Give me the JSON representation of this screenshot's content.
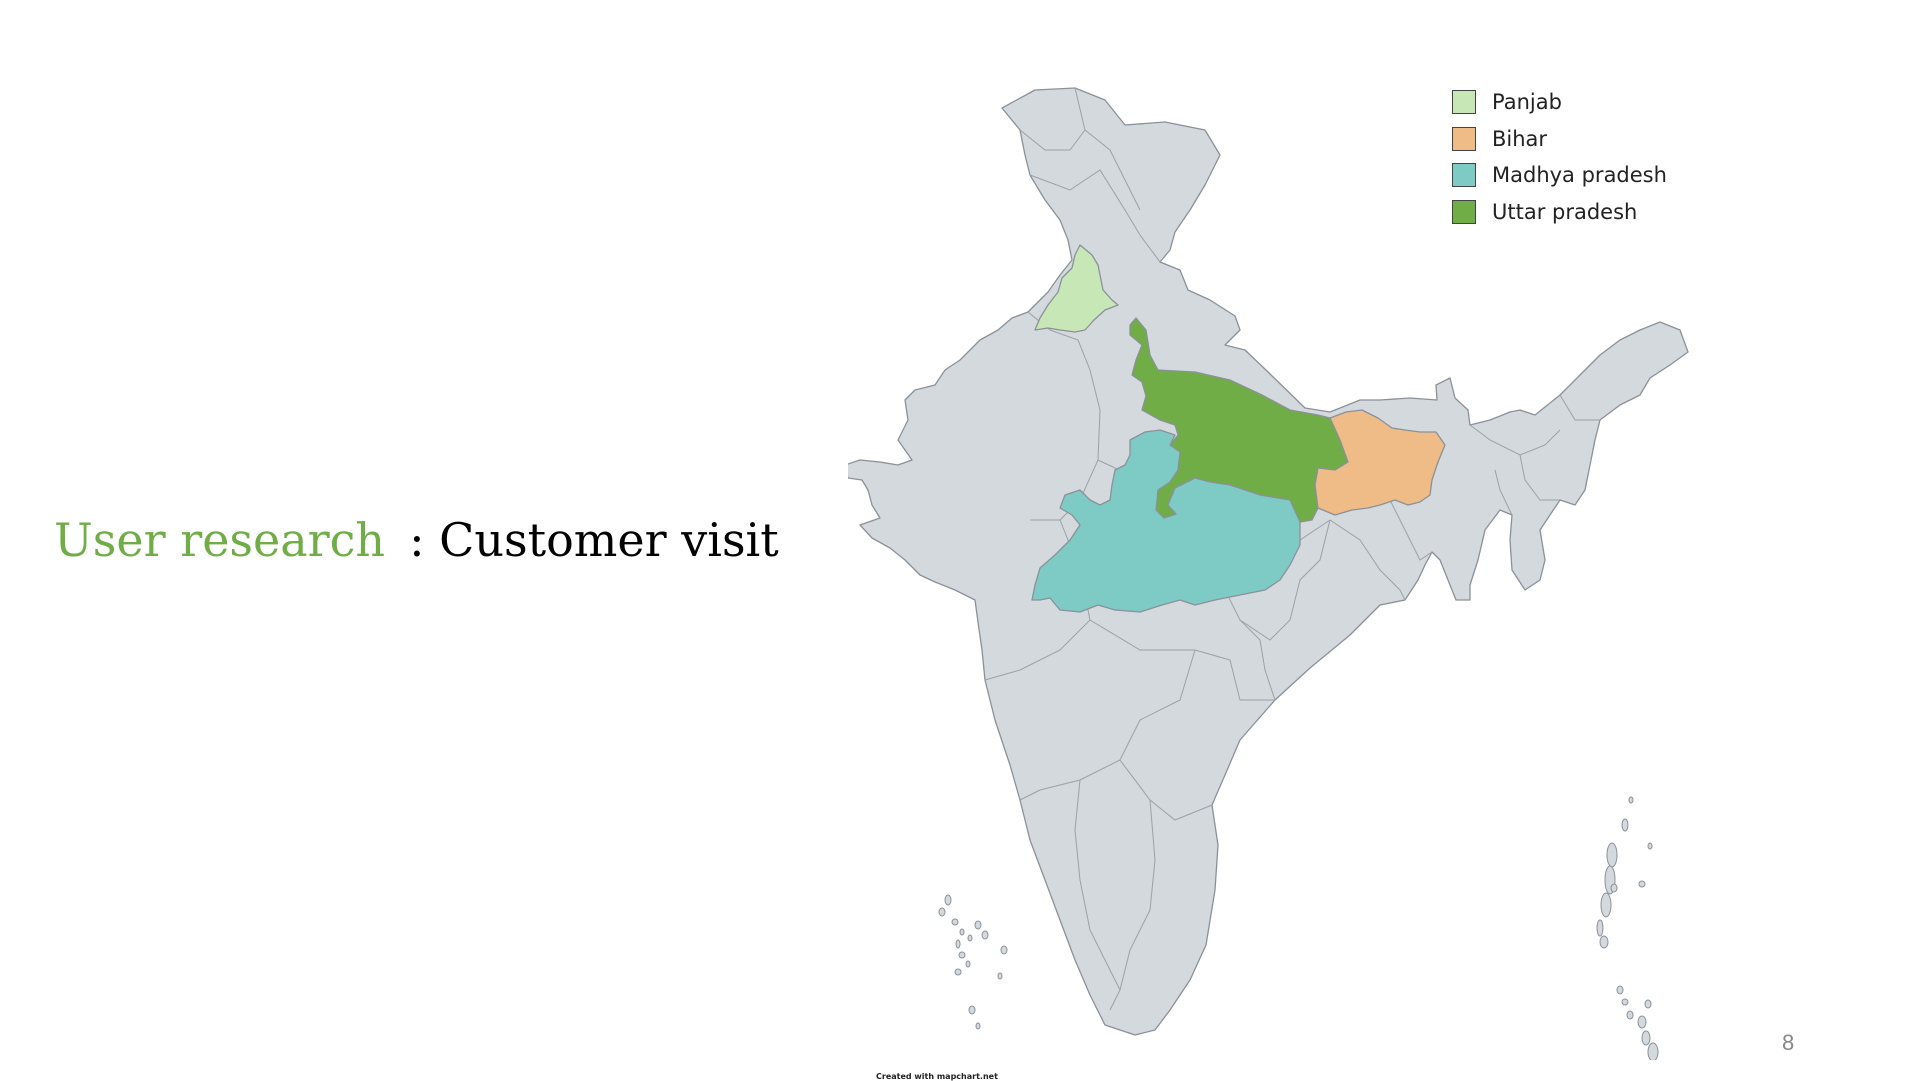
{
  "slide": {
    "title_accent": "User research",
    "title_rest": ": Customer visit",
    "page_number": "8"
  },
  "map": {
    "base_color": "#d3d9dc",
    "border_color": "#8a9199",
    "highlighted_regions": [
      {
        "name": "Panjab",
        "color": "#c8e7b6"
      },
      {
        "name": "Bihar",
        "color": "#efbb87"
      },
      {
        "name": "Madhya pradesh",
        "color": "#7ecbc6"
      },
      {
        "name": "Uttar pradesh",
        "color": "#70ad47"
      }
    ],
    "credit": "Created with mapchart.net"
  }
}
